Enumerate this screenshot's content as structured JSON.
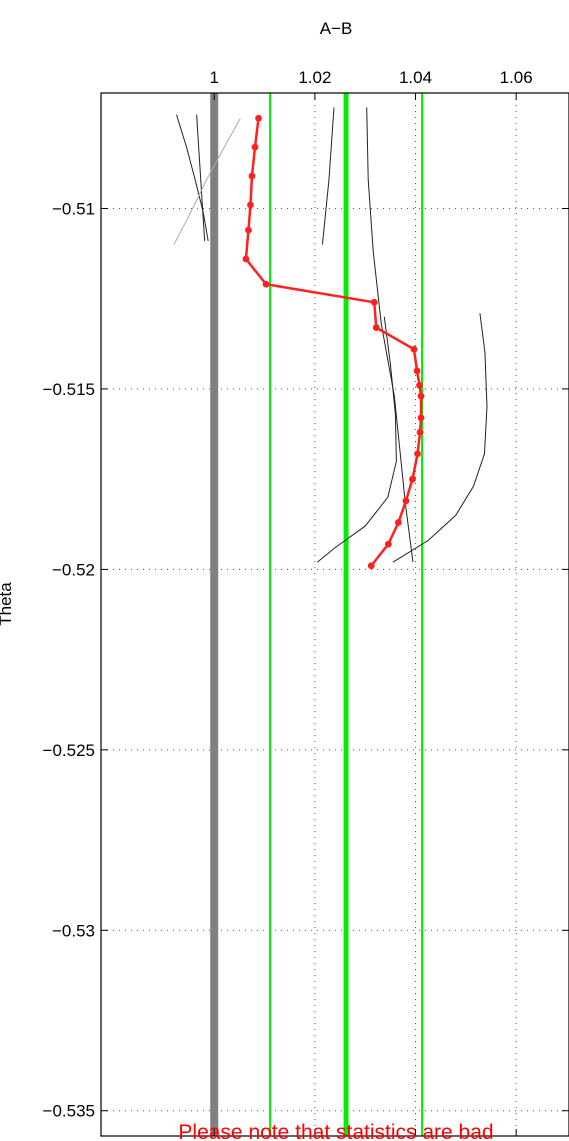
{
  "chart_data": {
    "type": "line",
    "title": "A−B",
    "xlabel": "",
    "ylabel": "Theta",
    "xlim": [
      0.9775,
      1.0705
    ],
    "ylim": [
      -0.5357,
      -0.5068
    ],
    "x_axis_position": "top",
    "x_ticks": [
      1,
      1.02,
      1.04,
      1.06
    ],
    "x_tick_labels": [
      "1",
      "1.02",
      "1.04",
      "1.06"
    ],
    "y_ticks": [
      -0.51,
      -0.515,
      -0.52,
      -0.525,
      -0.53,
      -0.535
    ],
    "y_tick_labels": [
      "−0.51",
      "−0.515",
      "−0.52",
      "−0.525",
      "−0.53",
      "−0.535"
    ],
    "grid": true,
    "note": "Please note that statistics are bad",
    "colors": {
      "main_series": "#ff2020",
      "reference_lines": "#00ee00",
      "unity_line": "#808080",
      "contours": "#222222",
      "light_contour": "#aaaaaa",
      "grid": "#555555",
      "note": "#ff0000"
    },
    "reference_lines": [
      {
        "x": 1,
        "color": "#808080",
        "width": 8
      },
      {
        "x": 1.0111,
        "color": "#00ee00",
        "width": 2
      },
      {
        "x": 1.0262,
        "color": "#00ee00",
        "width": 5
      },
      {
        "x": 1.0413,
        "color": "#00ee00",
        "width": 2
      }
    ],
    "series": [
      {
        "color": "#ff2020",
        "x": [
          1.0088,
          1.0081,
          1.0075,
          1.0072,
          1.0068,
          1.0063,
          1.0103,
          1.0318,
          1.0322,
          1.0397,
          1.0403,
          1.0408,
          1.0411,
          1.0411,
          1.0409,
          1.0404,
          1.0394,
          1.0381,
          1.0366,
          1.0346,
          1.0312
        ],
        "y": [
          -0.5075,
          -0.5083,
          -0.5091,
          -0.5099,
          -0.5106,
          -0.5114,
          -0.5121,
          -0.5126,
          -0.5133,
          -0.5139,
          -0.5145,
          -0.5149,
          -0.5152,
          -0.5158,
          -0.5162,
          -0.5168,
          -0.5175,
          -0.5181,
          -0.5187,
          -0.5193,
          -0.5199
        ]
      }
    ],
    "contours": [
      {
        "color": "#222222",
        "x": [
          0.9925,
          0.9945,
          0.9962,
          0.9978,
          0.9988
        ],
        "y": [
          -0.5074,
          -0.5083,
          -0.5092,
          -0.5101,
          -0.5109
        ]
      },
      {
        "color": "#222222",
        "x": [
          0.9965,
          0.997,
          0.9975,
          0.9981
        ],
        "y": [
          -0.5074,
          -0.5085,
          -0.5096,
          -0.5109
        ]
      },
      {
        "color": "#222222",
        "x": [
          1.0238,
          1.0228,
          1.0215
        ],
        "y": [
          -0.5072,
          -0.5092,
          -0.511
        ]
      },
      {
        "color": "#222222",
        "x": [
          1.0303,
          1.0306,
          1.0316,
          1.0332,
          1.0358,
          1.038,
          1.0395
        ],
        "y": [
          -0.5072,
          -0.5092,
          -0.5112,
          -0.5132,
          -0.5152,
          -0.5182,
          -0.5198
        ]
      },
      {
        "color": "#222222",
        "x": [
          1.0338,
          1.035,
          1.036,
          1.0362,
          1.0345,
          1.03,
          1.024,
          1.0205
        ],
        "y": [
          -0.513,
          -0.5143,
          -0.5157,
          -0.517,
          -0.518,
          -0.5188,
          -0.5194,
          -0.5198
        ]
      },
      {
        "color": "#222222",
        "x": [
          1.0528,
          1.0538,
          1.0542,
          1.0537,
          1.0515,
          1.048,
          1.0425,
          1.0355
        ],
        "y": [
          -0.5129,
          -0.514,
          -0.5155,
          -0.5168,
          -0.5177,
          -0.5185,
          -0.5192,
          -0.5198
        ]
      },
      {
        "color": "#aaaaaa",
        "x": [
          1.0052,
          1.002,
          0.9985,
          0.995,
          0.992
        ],
        "y": [
          -0.5075,
          -0.5083,
          -0.5092,
          -0.5102,
          -0.511
        ]
      }
    ]
  }
}
